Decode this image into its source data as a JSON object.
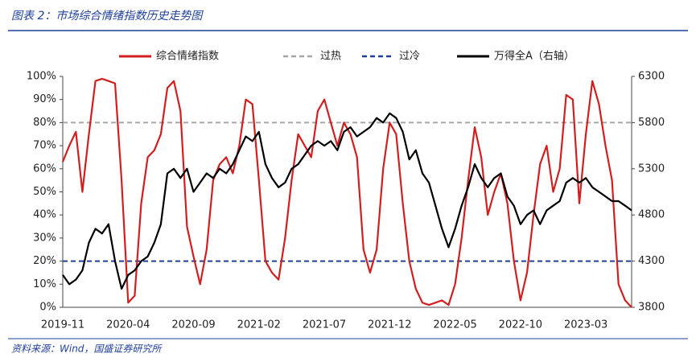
{
  "chart_data": {
    "type": "line",
    "title": "图表 2：市场综合情绪指数历史走势图",
    "source": "资料来源：Wind，国盛证券研究所",
    "categories": [
      "2019-11",
      null,
      null,
      null,
      null,
      null,
      null,
      null,
      null,
      null,
      "2020-04",
      null,
      null,
      null,
      null,
      null,
      null,
      null,
      null,
      null,
      "2020-09",
      null,
      null,
      null,
      null,
      null,
      null,
      null,
      null,
      null,
      "2021-02",
      null,
      null,
      null,
      null,
      null,
      null,
      null,
      null,
      null,
      "2021-07",
      null,
      null,
      null,
      null,
      null,
      null,
      null,
      null,
      null,
      "2021-12",
      null,
      null,
      null,
      null,
      null,
      null,
      null,
      null,
      null,
      "2022-05",
      null,
      null,
      null,
      null,
      null,
      null,
      null,
      null,
      null,
      "2022-10",
      null,
      null,
      null,
      null,
      null,
      null,
      null,
      null,
      null,
      "2023-03",
      null,
      null,
      null,
      null,
      null,
      null,
      null
    ],
    "series": [
      {
        "name": "综合情绪指数",
        "color": "#d11f1f",
        "axis": "y",
        "values": [
          63,
          70,
          76,
          50,
          75,
          98,
          99,
          98,
          97,
          55,
          2,
          5,
          45,
          65,
          68,
          75,
          95,
          98,
          85,
          35,
          22,
          10,
          25,
          55,
          62,
          65,
          58,
          70,
          90,
          88,
          55,
          20,
          15,
          12,
          30,
          55,
          75,
          70,
          65,
          85,
          90,
          80,
          70,
          80,
          75,
          65,
          25,
          15,
          25,
          60,
          80,
          75,
          45,
          20,
          8,
          2,
          1,
          2,
          3,
          1,
          10,
          30,
          55,
          78,
          65,
          40,
          50,
          58,
          45,
          20,
          3,
          15,
          40,
          62,
          70,
          50,
          60,
          92,
          90,
          45,
          75,
          98,
          88,
          70,
          55,
          10,
          3,
          0
        ]
      },
      {
        "name": "万得全A（右轴）",
        "color": "#000000",
        "axis": "y2",
        "values": [
          4150,
          4050,
          4100,
          4200,
          4500,
          4650,
          4600,
          4700,
          4300,
          4000,
          4150,
          4200,
          4300,
          4350,
          4500,
          4700,
          5250,
          5300,
          5200,
          5300,
          5050,
          5150,
          5250,
          5200,
          5300,
          5250,
          5350,
          5500,
          5650,
          5600,
          5700,
          5350,
          5200,
          5100,
          5150,
          5300,
          5350,
          5450,
          5550,
          5600,
          5550,
          5600,
          5500,
          5700,
          5750,
          5650,
          5700,
          5750,
          5850,
          5800,
          5900,
          5850,
          5700,
          5400,
          5500,
          5250,
          5150,
          4900,
          4650,
          4450,
          4650,
          4900,
          5100,
          5350,
          5200,
          5100,
          5200,
          5250,
          5000,
          4900,
          4700,
          4800,
          4850,
          4700,
          4850,
          4900,
          4950,
          5150,
          5200,
          5150,
          5200,
          5100,
          5050,
          5000,
          4950,
          4950,
          4900,
          4850
        ]
      }
    ],
    "hlines": [
      {
        "name": "过热",
        "value": 80,
        "color": "#a6a6a6"
      },
      {
        "name": "过冷",
        "value": 20,
        "color": "#1f3f99"
      }
    ],
    "ylim": [
      0,
      100
    ],
    "yticks": [
      {
        "value": 0,
        "label": "0%"
      },
      {
        "value": 10,
        "label": "10%"
      },
      {
        "value": 20,
        "label": "20%"
      },
      {
        "value": 30,
        "label": "30%"
      },
      {
        "value": 40,
        "label": "40%"
      },
      {
        "value": 50,
        "label": "50%"
      },
      {
        "value": 60,
        "label": "60%"
      },
      {
        "value": 70,
        "label": "70%"
      },
      {
        "value": 80,
        "label": "80%"
      },
      {
        "value": 90,
        "label": "90%"
      },
      {
        "value": 100,
        "label": "100%"
      }
    ],
    "y2lim": [
      3800,
      6300
    ],
    "y2ticks": [
      3800,
      4300,
      4800,
      5300,
      5800,
      6300
    ]
  }
}
